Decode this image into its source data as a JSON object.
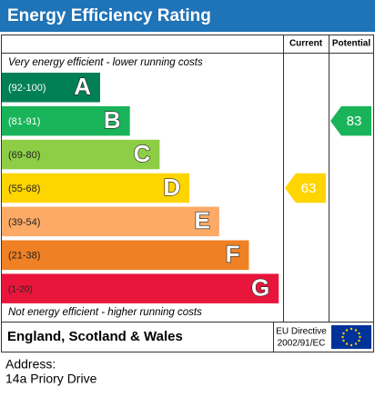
{
  "title": "Energy Efficiency Rating",
  "columns": {
    "current": "Current",
    "potential": "Potential"
  },
  "top_note": "Very energy efficient - lower running costs",
  "bottom_note": "Not energy efficient - higher running costs",
  "bands": [
    {
      "range": "(92-100)",
      "letter": "A",
      "color": "#008054"
    },
    {
      "range": "(81-91)",
      "letter": "B",
      "color": "#19b459"
    },
    {
      "range": "(69-80)",
      "letter": "C",
      "color": "#8dce46"
    },
    {
      "range": "(55-68)",
      "letter": "D",
      "color": "#ffd500"
    },
    {
      "range": "(39-54)",
      "letter": "E",
      "color": "#fcaa65"
    },
    {
      "range": "(21-38)",
      "letter": "F",
      "color": "#ef8023"
    },
    {
      "range": "(1-20)",
      "letter": "G",
      "color": "#e9153b"
    }
  ],
  "current": "63",
  "potential": "83",
  "footer": {
    "region": "England, Scotland & Wales",
    "directive_line1": "EU Directive",
    "directive_line2": "2002/91/EC"
  },
  "address": {
    "label": "Address:",
    "value": "14a Priory Drive"
  }
}
